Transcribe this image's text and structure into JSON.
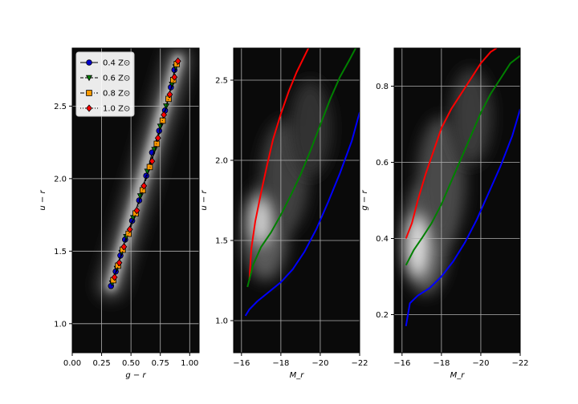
{
  "chart_data": [
    {
      "type": "scatter",
      "xlabel": "g − r",
      "ylabel": "u − r",
      "xlim": [
        0.0,
        1.08
      ],
      "ylim": [
        0.8,
        2.9
      ],
      "xticks": [
        0.0,
        0.25,
        0.5,
        0.75,
        1.0
      ],
      "xtick_labels": [
        "0.00",
        "0.25",
        "0.50",
        "0.75",
        "1.00"
      ],
      "yticks": [
        1.0,
        1.5,
        2.0,
        2.5
      ],
      "ytick_labels": [
        "1.0",
        "1.5",
        "2.0",
        "2.5"
      ],
      "grid": true,
      "background": "density-contours",
      "legend": {
        "placement": "top-left",
        "entries": [
          {
            "label": "0.4 Z⊙",
            "color": "#0000cc",
            "marker": "circle",
            "line": "solid"
          },
          {
            "label": "0.6 Z⊙",
            "color": "#008000",
            "marker": "triangle-down",
            "line": "dashed"
          },
          {
            "label": "0.8 Z⊙",
            "color": "#ff9900",
            "marker": "square",
            "line": "dashdot"
          },
          {
            "label": "1.0 Z⊙",
            "color": "#ff0000",
            "marker": "diamond",
            "line": "dotted"
          }
        ]
      },
      "series": [
        {
          "name": "0.4 Z⊙",
          "x": [
            0.33,
            0.37,
            0.41,
            0.45,
            0.51,
            0.57,
            0.63,
            0.68,
            0.74,
            0.79,
            0.84,
            0.87
          ],
          "y": [
            1.26,
            1.36,
            1.47,
            1.58,
            1.71,
            1.85,
            2.02,
            2.18,
            2.33,
            2.47,
            2.63,
            2.75
          ]
        },
        {
          "name": "0.6 Z⊙",
          "x": [
            0.34,
            0.38,
            0.42,
            0.46,
            0.52,
            0.58,
            0.64,
            0.7,
            0.75,
            0.8,
            0.85,
            0.88
          ],
          "y": [
            1.28,
            1.38,
            1.49,
            1.6,
            1.73,
            1.88,
            2.05,
            2.2,
            2.36,
            2.5,
            2.65,
            2.77
          ]
        },
        {
          "name": "0.8 Z⊙",
          "x": [
            0.35,
            0.39,
            0.43,
            0.48,
            0.54,
            0.6,
            0.66,
            0.72,
            0.77,
            0.82,
            0.86,
            0.89
          ],
          "y": [
            1.3,
            1.4,
            1.51,
            1.62,
            1.76,
            1.92,
            2.08,
            2.24,
            2.4,
            2.55,
            2.68,
            2.79
          ]
        },
        {
          "name": "1.0 Z⊙",
          "x": [
            0.36,
            0.4,
            0.44,
            0.49,
            0.55,
            0.61,
            0.68,
            0.73,
            0.78,
            0.83,
            0.87,
            0.9
          ],
          "y": [
            1.32,
            1.42,
            1.53,
            1.65,
            1.78,
            1.95,
            2.12,
            2.28,
            2.44,
            2.58,
            2.7,
            2.81
          ]
        }
      ]
    },
    {
      "type": "line",
      "xlabel": "M_r",
      "ylabel": "u − r",
      "xlim": [
        -15.6,
        -22.0
      ],
      "ylim": [
        0.8,
        2.7
      ],
      "xticks": [
        -16,
        -18,
        -20,
        -22
      ],
      "xtick_labels": [
        "−16",
        "−18",
        "−20",
        "−22"
      ],
      "yticks": [
        1.0,
        1.5,
        2.0,
        2.5
      ],
      "ytick_labels": [
        "1.0",
        "1.5",
        "2.0",
        "2.5"
      ],
      "grid": true,
      "background": "density-contours",
      "series": [
        {
          "color": "#ff0000",
          "x": [
            -16.4,
            -16.5,
            -16.7,
            -17.0,
            -17.3,
            -17.6,
            -18.0,
            -18.4,
            -18.8,
            -19.2,
            -19.4
          ],
          "y": [
            1.25,
            1.45,
            1.62,
            1.8,
            1.97,
            2.13,
            2.29,
            2.43,
            2.55,
            2.65,
            2.7
          ]
        },
        {
          "color": "#008000",
          "x": [
            -16.3,
            -16.6,
            -17.0,
            -17.5,
            -18.0,
            -18.5,
            -19.0,
            -19.5,
            -20.0,
            -20.5,
            -21.0,
            -21.5,
            -21.8
          ],
          "y": [
            1.21,
            1.35,
            1.46,
            1.55,
            1.66,
            1.78,
            1.91,
            2.06,
            2.22,
            2.38,
            2.52,
            2.63,
            2.7
          ]
        },
        {
          "color": "#0000ff",
          "x": [
            -16.2,
            -16.4,
            -16.8,
            -17.4,
            -18.0,
            -18.6,
            -19.2,
            -19.8,
            -20.4,
            -21.0,
            -21.6,
            -22.0
          ],
          "y": [
            1.03,
            1.07,
            1.12,
            1.18,
            1.24,
            1.32,
            1.43,
            1.57,
            1.74,
            1.92,
            2.12,
            2.3
          ]
        }
      ]
    },
    {
      "type": "line",
      "xlabel": "M_r",
      "ylabel": "g − r",
      "xlim": [
        -15.6,
        -22.0
      ],
      "ylim": [
        0.1,
        0.9
      ],
      "xticks": [
        -16,
        -18,
        -20,
        -22
      ],
      "xtick_labels": [
        "−16",
        "−18",
        "−20",
        "−22"
      ],
      "yticks": [
        0.2,
        0.4,
        0.6,
        0.8
      ],
      "ytick_labels": [
        "0.2",
        "0.4",
        "0.6",
        "0.8"
      ],
      "grid": true,
      "background": "density-contours",
      "series": [
        {
          "color": "#ff0000",
          "x": [
            -16.2,
            -16.5,
            -16.8,
            -17.2,
            -17.6,
            -18.0,
            -18.5,
            -19.0,
            -19.5,
            -20.0,
            -20.5,
            -20.8
          ],
          "y": [
            0.4,
            0.44,
            0.5,
            0.57,
            0.63,
            0.69,
            0.74,
            0.78,
            0.82,
            0.86,
            0.89,
            0.9
          ]
        },
        {
          "color": "#008000",
          "x": [
            -16.2,
            -16.6,
            -17.0,
            -17.5,
            -18.0,
            -18.5,
            -19.0,
            -19.5,
            -20.0,
            -20.5,
            -21.0,
            -21.5,
            -22.0
          ],
          "y": [
            0.33,
            0.37,
            0.4,
            0.44,
            0.49,
            0.55,
            0.61,
            0.67,
            0.73,
            0.78,
            0.82,
            0.86,
            0.88
          ]
        },
        {
          "color": "#0000ff",
          "x": [
            -16.2,
            -16.4,
            -16.8,
            -17.4,
            -18.0,
            -18.6,
            -19.2,
            -19.8,
            -20.4,
            -21.0,
            -21.6,
            -22.0
          ],
          "y": [
            0.17,
            0.23,
            0.25,
            0.27,
            0.3,
            0.34,
            0.39,
            0.45,
            0.52,
            0.59,
            0.67,
            0.74
          ]
        }
      ]
    }
  ]
}
